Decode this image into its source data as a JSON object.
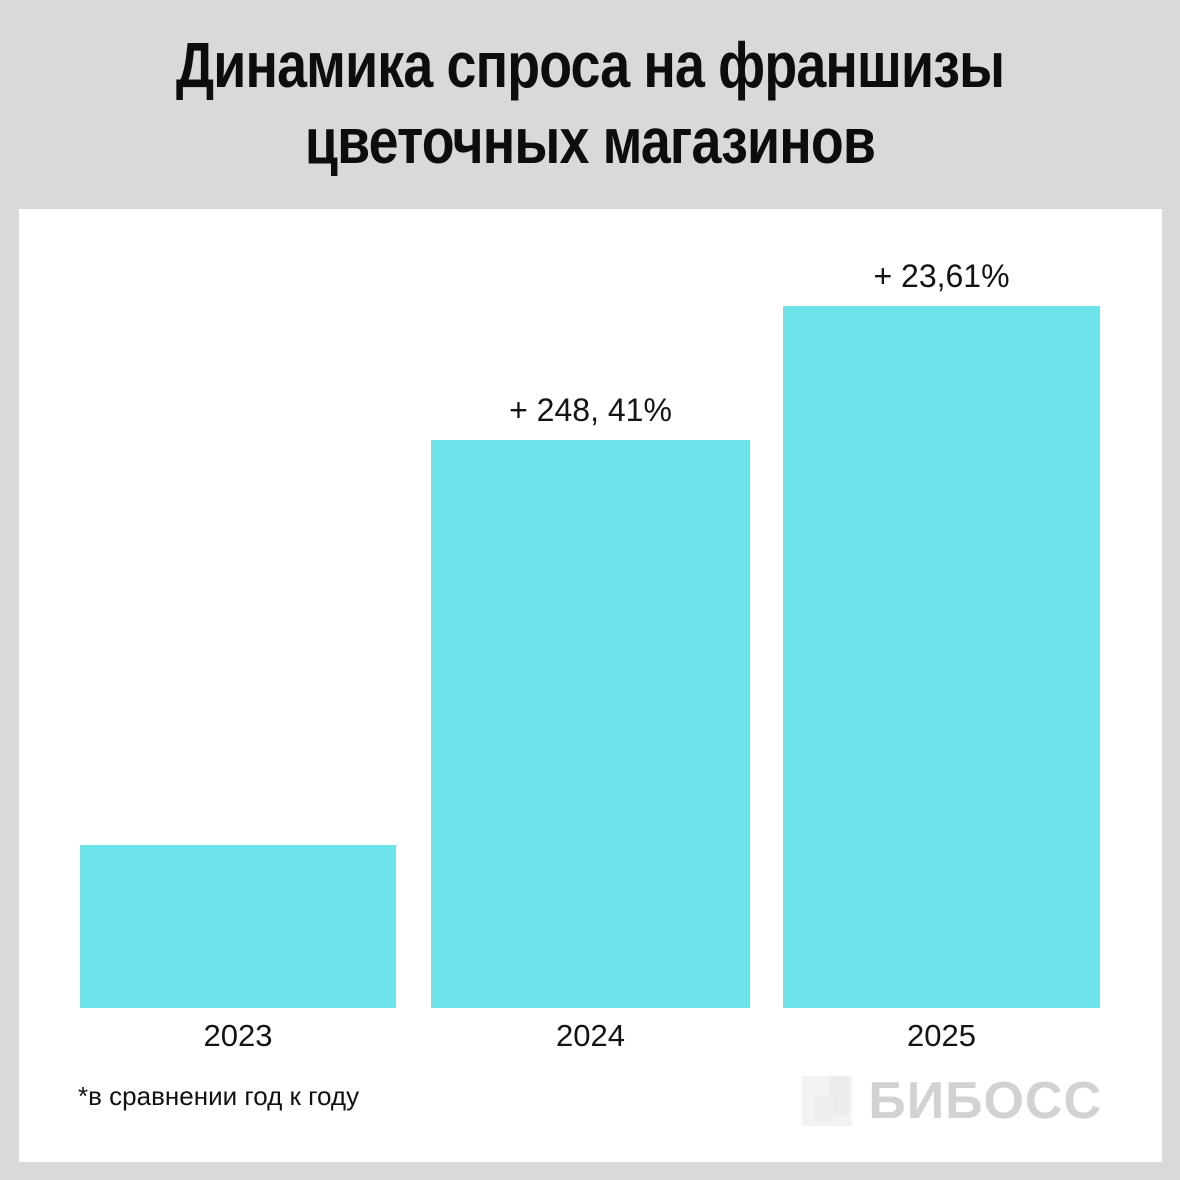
{
  "header": {
    "title_lines": [
      "Динамика спроса на франшизы",
      "цветочных магазинов"
    ]
  },
  "chart_data": {
    "type": "bar",
    "title": "Динамика спроса на франшизы цветочных магазинов",
    "categories": [
      "2023",
      "2024",
      "2025"
    ],
    "values": [
      100,
      348.41,
      430.66
    ],
    "bar_labels": [
      "",
      "+ 248, 41%",
      "+ 23,61%"
    ],
    "growth_yoy_percent": [
      null,
      248.41,
      23.61
    ],
    "bar_color": "#6CE3E9",
    "xlabel": "",
    "ylabel": "",
    "ylim": [
      0,
      440
    ],
    "grid": false,
    "axes_visible": false,
    "legend": null
  },
  "footnote": {
    "text": "*в сравнении год к году"
  },
  "logo": {
    "text": "БИБОСС",
    "color": "#d2d2d2"
  },
  "colors": {
    "background": "#d9d9d9",
    "panel": "#ffffff",
    "text": "#0d0d0d"
  }
}
